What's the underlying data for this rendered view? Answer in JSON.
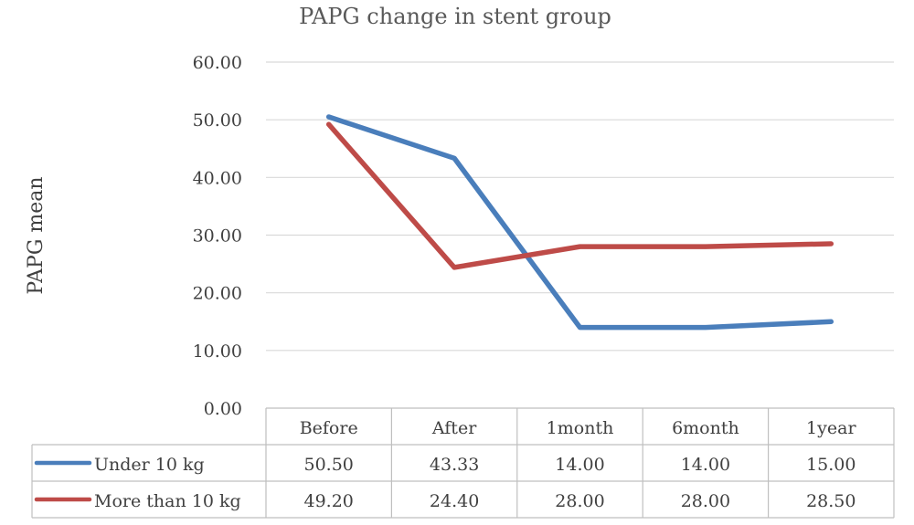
{
  "chart_data": {
    "type": "line",
    "title": "PAPG change in stent group",
    "xlabel": "",
    "ylabel": "PAPG mean",
    "categories": [
      "Before",
      "After",
      "1month",
      "6month",
      "1year"
    ],
    "ylim": [
      0,
      60
    ],
    "yticks": [
      "0.00",
      "10.00",
      "20.00",
      "30.00",
      "40.00",
      "50.00",
      "60.00"
    ],
    "grid": true,
    "legend": "data-table",
    "series": [
      {
        "name": "Under 10 kg",
        "color": "#4a7ebb",
        "values": [
          50.5,
          43.33,
          14.0,
          14.0,
          15.0
        ],
        "labels": [
          "50.50",
          "43.33",
          "14.00",
          "14.00",
          "15.00"
        ]
      },
      {
        "name": "More than 10 kg",
        "color": "#be4b48",
        "values": [
          49.2,
          24.4,
          28.0,
          28.0,
          28.5
        ],
        "labels": [
          "49.20",
          "24.40",
          "28.00",
          "28.00",
          "28.50"
        ]
      }
    ]
  }
}
